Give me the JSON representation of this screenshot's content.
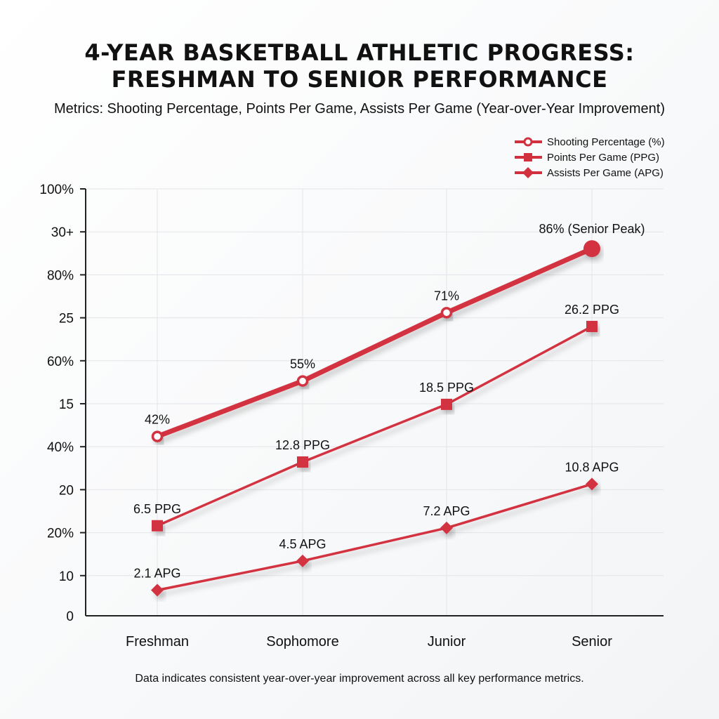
{
  "chart_data": {
    "type": "line",
    "title_line1": "4-YEAR BASKETBALL ATHLETIC PROGRESS:",
    "title_line2": "FRESHMAN TO SENIOR PERFORMANCE",
    "subtitle": "Metrics: Shooting Percentage, Points Per Game, Assists Per Game (Year-over-Year Improvement)",
    "footer": "Data indicates consistent year-over-year improvement across all key performance metrics.",
    "categories": [
      "Freshman",
      "Sophomore",
      "Junior",
      "Senior"
    ],
    "y_tick_labels": [
      "100%",
      "30+",
      "80%",
      "25",
      "60%",
      "15",
      "40%",
      "20",
      "20%",
      "10",
      "0"
    ],
    "grid": true,
    "legend_position": "top-right",
    "series": [
      {
        "name": "Shooting Percentage (%)",
        "marker": "circle",
        "values": [
          42,
          55,
          71,
          86
        ],
        "ylim": [
          0,
          100
        ],
        "labels": [
          "42%",
          "55%",
          "71%",
          "86% (Senior Peak)"
        ]
      },
      {
        "name": "Points Per Game (PPG)",
        "marker": "square",
        "values": [
          6.5,
          12.8,
          18.5,
          26.2
        ],
        "ylim": [
          -2.4,
          39.8
        ],
        "labels": [
          "6.5 PPG",
          "12.8 PPG",
          "18.5 PPG",
          "26.2 PPG"
        ]
      },
      {
        "name": "Assists Per Game (APG)",
        "marker": "diamond",
        "values": [
          2.1,
          4.5,
          7.2,
          10.8
        ],
        "ylim": [
          0,
          35
        ],
        "labels": [
          "2.1 APG",
          "4.5 APG",
          "7.2 APG",
          "10.8 APG"
        ]
      }
    ],
    "colors": {
      "line": "#d3303f",
      "text": "#111111",
      "grid": "#e2e4e8"
    }
  }
}
